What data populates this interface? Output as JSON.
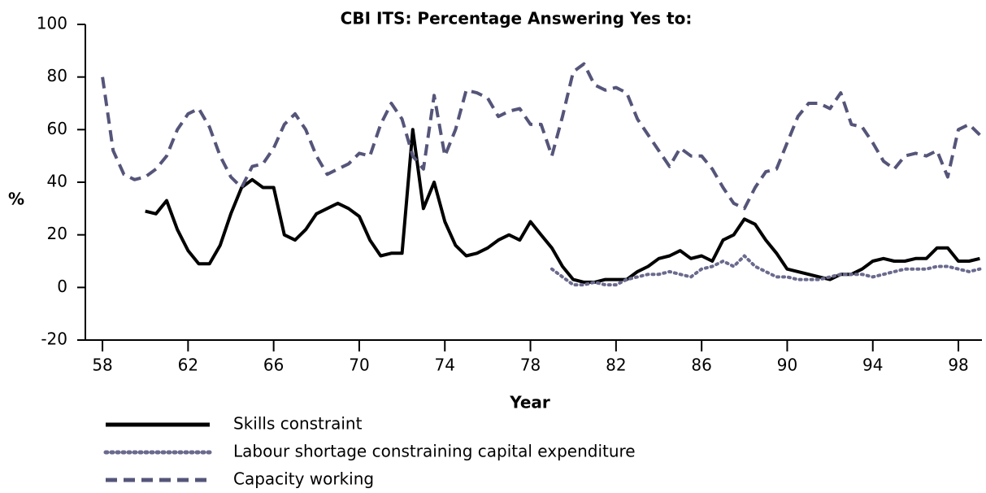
{
  "chart_data": {
    "type": "line",
    "title": "CBI ITS: Percentage Answering Yes to:",
    "xlabel": "Year",
    "ylabel": "%",
    "x": [
      58,
      58.5,
      59,
      59.5,
      60,
      60.5,
      61,
      61.5,
      62,
      62.5,
      63,
      63.5,
      64,
      64.5,
      65,
      65.5,
      66,
      66.5,
      67,
      67.5,
      68,
      68.5,
      69,
      69.5,
      70,
      70.5,
      71,
      71.5,
      72,
      72.5,
      73,
      73.5,
      74,
      74.5,
      75,
      75.5,
      76,
      76.5,
      77,
      77.5,
      78,
      78.5,
      79,
      79.5,
      80,
      80.5,
      81,
      81.5,
      82,
      82.5,
      83,
      83.5,
      84,
      84.5,
      85,
      85.5,
      86,
      86.5,
      87,
      87.5,
      88,
      88.5,
      89,
      89.5,
      90,
      90.5,
      91,
      91.5,
      92,
      92.5,
      93,
      93.5,
      94,
      94.5,
      95,
      95.5,
      96,
      96.5,
      97,
      97.5,
      98,
      98.5,
      99
    ],
    "series": [
      {
        "name": "Skills constraint",
        "color": "#000000",
        "style": "solid",
        "values": [
          null,
          null,
          null,
          null,
          29,
          28,
          33,
          22,
          14,
          9,
          9,
          16,
          28,
          38,
          41,
          38,
          38,
          20,
          18,
          22,
          28,
          30,
          32,
          30,
          27,
          18,
          12,
          13,
          13,
          60,
          30,
          40,
          25,
          16,
          12,
          13,
          15,
          18,
          20,
          18,
          25,
          20,
          15,
          8,
          3,
          2,
          2,
          3,
          3,
          3,
          6,
          8,
          11,
          12,
          14,
          11,
          12,
          10,
          18,
          20,
          26,
          24,
          18,
          13,
          7,
          6,
          5,
          4,
          3,
          5,
          5,
          7,
          10,
          11,
          10,
          10,
          11,
          11,
          15,
          15,
          10,
          10,
          11
        ]
      },
      {
        "name": "Labour shortage constraining capital expenditure",
        "color": "#6a6a8e",
        "style": "dotted",
        "values": [
          null,
          null,
          null,
          null,
          null,
          null,
          null,
          null,
          null,
          null,
          null,
          null,
          null,
          null,
          null,
          null,
          null,
          null,
          null,
          null,
          null,
          null,
          null,
          null,
          null,
          null,
          null,
          null,
          null,
          null,
          null,
          null,
          null,
          null,
          null,
          null,
          null,
          null,
          null,
          null,
          null,
          null,
          7,
          4,
          1,
          1,
          2,
          1,
          1,
          3,
          4,
          5,
          5,
          6,
          5,
          4,
          7,
          8,
          10,
          8,
          12,
          8,
          6,
          4,
          4,
          3,
          3,
          3,
          4,
          5,
          5,
          5,
          4,
          5,
          6,
          7,
          7,
          7,
          8,
          8,
          7,
          6,
          7
        ]
      },
      {
        "name": "Capacity working",
        "color": "#55557a",
        "style": "dashed",
        "values": [
          80,
          52,
          43,
          41,
          42,
          45,
          50,
          60,
          66,
          68,
          61,
          50,
          42,
          38,
          46,
          47,
          53,
          62,
          66,
          60,
          50,
          43,
          45,
          47,
          51,
          50,
          62,
          70,
          64,
          50,
          45,
          73,
          50,
          60,
          75,
          74,
          72,
          65,
          67,
          68,
          62,
          62,
          50,
          65,
          82,
          85,
          77,
          75,
          76,
          74,
          64,
          58,
          52,
          46,
          53,
          50,
          50,
          45,
          38,
          32,
          30,
          38,
          44,
          45,
          55,
          65,
          70,
          70,
          68,
          74,
          62,
          61,
          55,
          48,
          45,
          50,
          51,
          50,
          52,
          42,
          60,
          62,
          58
        ]
      }
    ],
    "xlim": [
      57.2,
      99.1
    ],
    "xticks": [
      58,
      62,
      66,
      70,
      74,
      78,
      82,
      86,
      90,
      94,
      98
    ],
    "ylim": [
      -20,
      100
    ],
    "yticks": [
      -20,
      0,
      20,
      40,
      60,
      80,
      100
    ]
  }
}
